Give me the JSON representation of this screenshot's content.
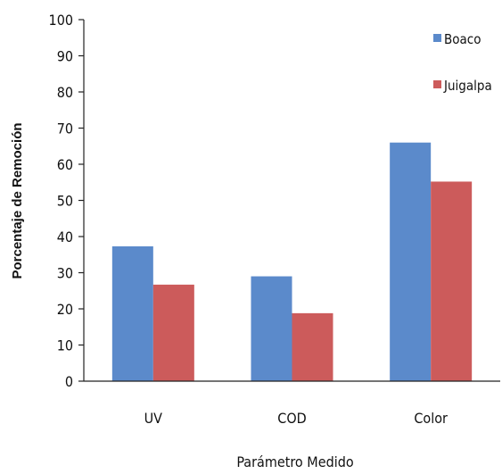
{
  "chart_data": {
    "type": "bar",
    "title": "",
    "xlabel": "Parámetro Medido",
    "ylabel": "Porcentaje de Remoción",
    "ylim": [
      0,
      100
    ],
    "yticks": [
      0,
      10,
      20,
      30,
      40,
      50,
      60,
      70,
      80,
      90,
      100
    ],
    "categories": [
      "UV",
      "COD",
      "Color"
    ],
    "series": [
      {
        "name": "Boaco",
        "values": [
          37.3,
          29.0,
          66.0
        ],
        "color": "#5B8ACB"
      },
      {
        "name": "Juigalpa",
        "values": [
          26.7,
          18.8,
          55.2
        ],
        "color": "#CC5B5B"
      }
    ],
    "grid": false,
    "legend_position": "top-right"
  }
}
